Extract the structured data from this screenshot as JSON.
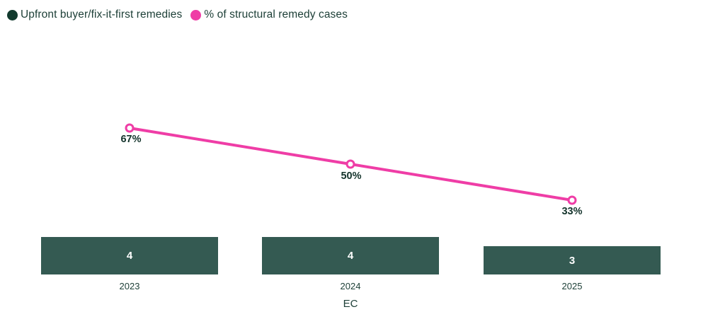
{
  "legend": {
    "items": [
      {
        "label": "Upfront buyer/fix-it-first remedies",
        "color": "#123a2e"
      },
      {
        "label": "% of structural remedy cases",
        "color": "#ef3da6"
      }
    ]
  },
  "chart_data": {
    "type": "combo",
    "categories": [
      "2023",
      "2024",
      "2025"
    ],
    "series": [
      {
        "name": "Upfront buyer/fix-it-first remedies",
        "type": "bar",
        "values": [
          4,
          4,
          3
        ],
        "color": "#345a52"
      },
      {
        "name": "% of structural remedy cases",
        "type": "line",
        "values": [
          67,
          50,
          33
        ],
        "point_labels": [
          "67%",
          "50%",
          "33%"
        ],
        "color": "#ef3da6",
        "marker": "open-circle"
      }
    ],
    "xlabel": "EC",
    "ylabel": "",
    "legend_position": "top-left",
    "grid": false,
    "y_axis_visible": false,
    "bar_ylim": [
      0,
      4
    ],
    "line_ylim_percent": [
      0,
      100
    ]
  },
  "colors": {
    "background": "#ffffff",
    "text": "#1e4038",
    "point_label_text": "#13332b",
    "bar_value_text": "#ffffff"
  }
}
